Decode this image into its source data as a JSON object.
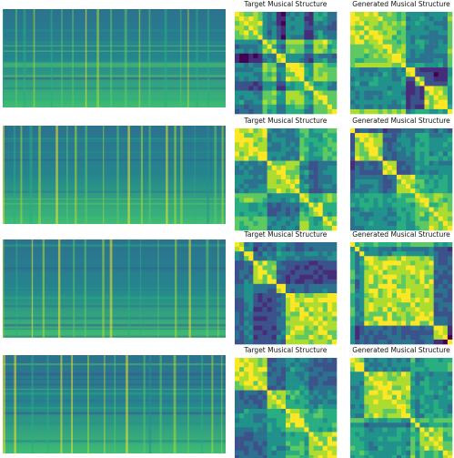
{
  "rows": [
    {
      "target_title": "Target Musical Structure",
      "generated_title": "Generated Musical Structure"
    },
    {
      "target_title": "Target Musical Structure",
      "generated_title": "Generated Musical Structure"
    },
    {
      "target_title": "Target Musical Structure",
      "generated_title": "Generated Musical Structure"
    },
    {
      "target_title": "Target Musical Structure",
      "generated_title": "Generated Musical Structure"
    }
  ]
}
